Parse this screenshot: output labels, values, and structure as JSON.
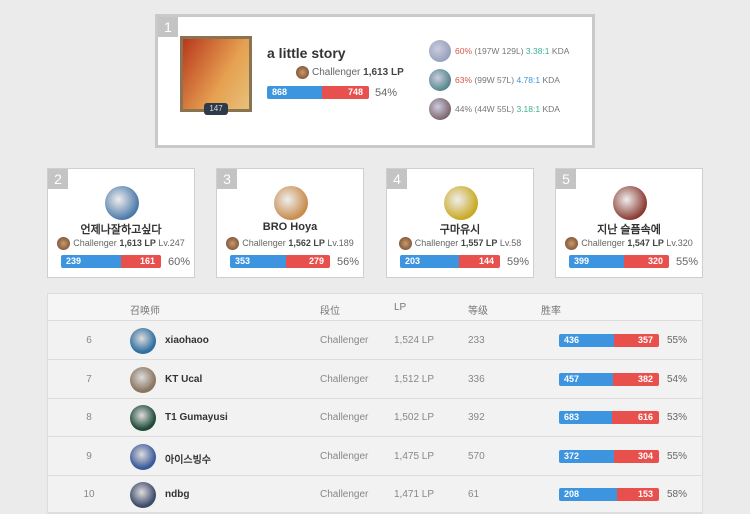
{
  "top": {
    "rank": "1",
    "name": "a little story",
    "level": "147",
    "tier": "Challenger",
    "lp": "1,613 LP",
    "wins": 868,
    "losses": 748,
    "winrate": "54%",
    "champions": [
      {
        "wr": "60%",
        "record": "(197W 129L)",
        "kda": "3.38:1",
        "kda_label": "KDA",
        "wr_color": "#d9534f",
        "kda_color": "#3cae8f"
      },
      {
        "wr": "63%",
        "record": "(99W 57L)",
        "kda": "4.78:1",
        "kda_label": "KDA",
        "wr_color": "#d9534f",
        "kda_color": "#3d95e0"
      },
      {
        "wr": "44%",
        "record": "(44W 55L)",
        "kda": "3.18:1",
        "kda_label": "KDA",
        "wr_color": "#777777",
        "kda_color": "#3cae8f"
      }
    ]
  },
  "cards": [
    {
      "rank": "2",
      "name": "언제나잘하고싶다",
      "tier": "Challenger",
      "lp": "1,613 LP",
      "level": "Lv.247",
      "wins": 239,
      "losses": 161,
      "winrate": "60%",
      "avatar": "#4a78a8"
    },
    {
      "rank": "3",
      "name": "BRO Hoya",
      "tier": "Challenger",
      "lp": "1,562 LP",
      "level": "Lv.189",
      "wins": 353,
      "losses": 279,
      "winrate": "56%",
      "avatar": "#c98a4a"
    },
    {
      "rank": "4",
      "name": "구마유시",
      "tier": "Challenger",
      "lp": "1,557 LP",
      "level": "Lv.58",
      "wins": 203,
      "losses": 144,
      "winrate": "59%",
      "avatar": "#c9a820"
    },
    {
      "rank": "5",
      "name": "지난 슬픔속에",
      "tier": "Challenger",
      "lp": "1,547 LP",
      "level": "Lv.320",
      "wins": 399,
      "losses": 320,
      "winrate": "55%",
      "avatar": "#8a3a30"
    }
  ],
  "table": {
    "headers": {
      "summoner": "召唤师",
      "tier": "段位",
      "lp": "LP",
      "level": "等级",
      "winrate": "胜率"
    },
    "rows": [
      {
        "rank": "6",
        "name": "xiaohaoo",
        "tier": "Challenger",
        "lp": "1,524 LP",
        "level": "233",
        "wins": 436,
        "losses": 357,
        "winrate": "55%",
        "avatar": "#2f6fa0"
      },
      {
        "rank": "7",
        "name": "KT Ucal",
        "tier": "Challenger",
        "lp": "1,512 LP",
        "level": "336",
        "wins": 457,
        "losses": 382,
        "winrate": "54%",
        "avatar": "#8a7560"
      },
      {
        "rank": "8",
        "name": "T1 Gumayusi",
        "tier": "Challenger",
        "lp": "1,502 LP",
        "level": "392",
        "wins": 683,
        "losses": 616,
        "winrate": "53%",
        "avatar": "#1f4a38"
      },
      {
        "rank": "9",
        "name": "아이스빙수",
        "tier": "Challenger",
        "lp": "1,475 LP",
        "level": "570",
        "wins": 372,
        "losses": 304,
        "winrate": "55%",
        "avatar": "#3b5a9a"
      },
      {
        "rank": "10",
        "name": "ndbg",
        "tier": "Challenger",
        "lp": "1,471 LP",
        "level": "61",
        "wins": 208,
        "losses": 153,
        "winrate": "58%",
        "avatar": "#3e4a6a"
      }
    ]
  }
}
